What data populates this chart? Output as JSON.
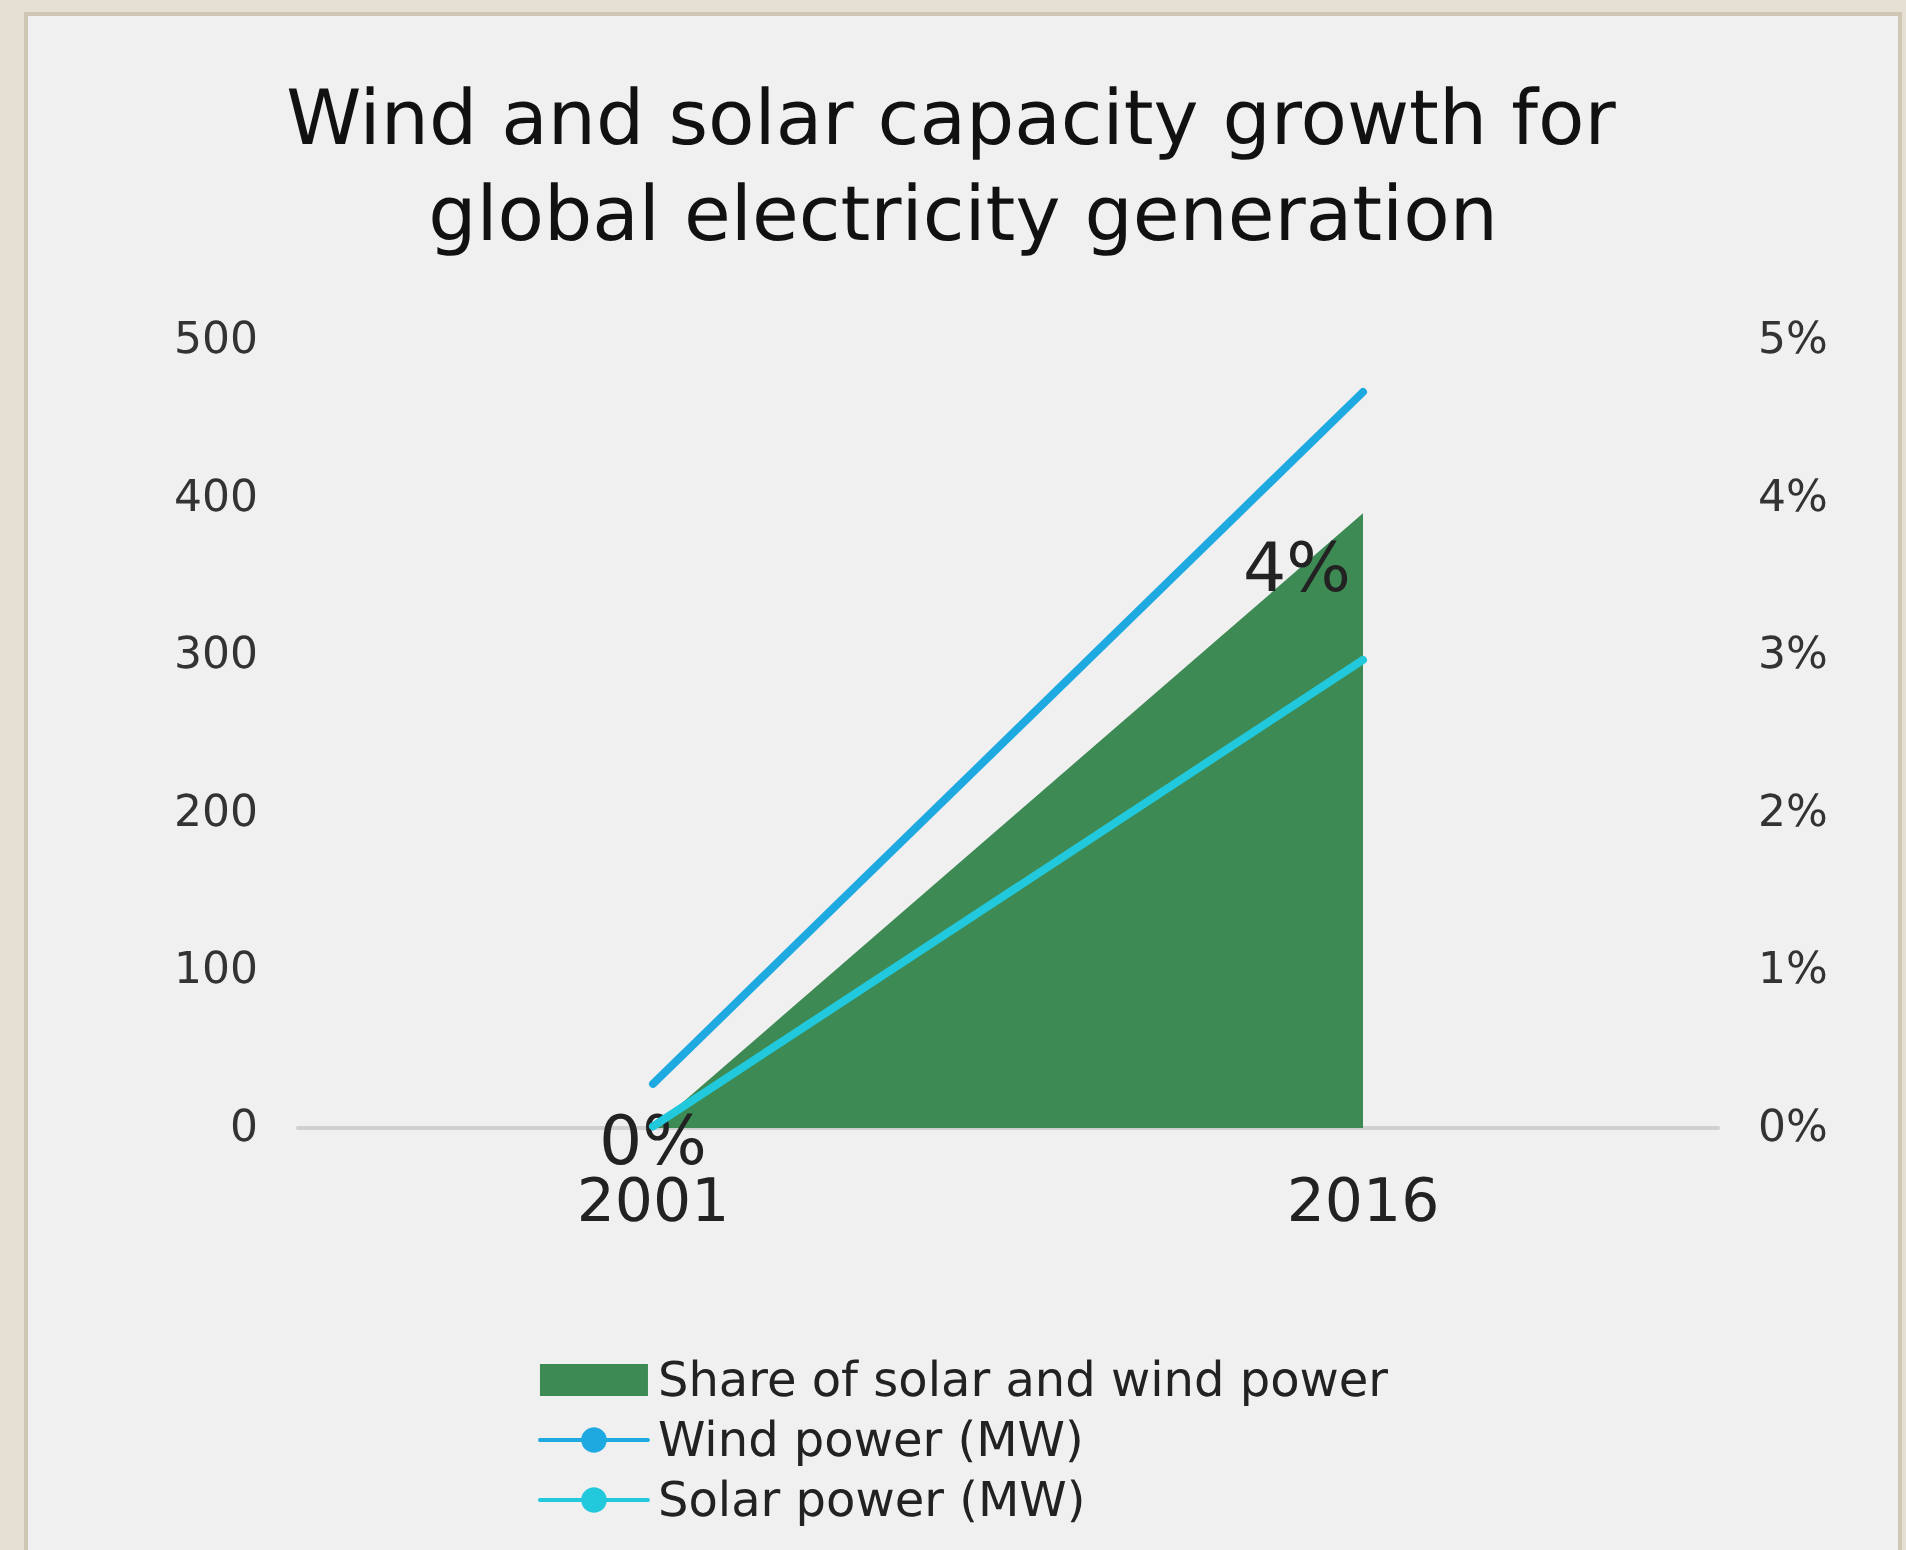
{
  "chart_data": {
    "type": "line",
    "title": "Wind and solar capacity growth for global electricity generation",
    "categories": [
      "2001",
      "2016"
    ],
    "series": [
      {
        "name": "Share of solar and wind power",
        "type": "area",
        "axis": "y2",
        "color": "#3e8a55",
        "values": [
          0,
          3.9
        ],
        "value_labels": [
          "0%",
          "4%"
        ]
      },
      {
        "name": "Wind power (MW)",
        "color": "#1fa9e1",
        "values": [
          28,
          467
        ]
      },
      {
        "name": "Solar power (MW)",
        "color": "#22c8dc",
        "values": [
          1,
          297
        ]
      }
    ],
    "ylim": [
      0,
      500
    ],
    "yticks": [
      0,
      100,
      200,
      300,
      400,
      500
    ],
    "y2lim": [
      0,
      5
    ],
    "y2ticks": [
      {
        "value": 0,
        "label": "0%"
      },
      {
        "value": 1,
        "label": "1%"
      },
      {
        "value": 2,
        "label": "2%"
      },
      {
        "value": 3,
        "label": "3%"
      },
      {
        "value": 4,
        "label": "4%"
      },
      {
        "value": 5,
        "label": "5%"
      }
    ],
    "grid": false,
    "legend": "bottom",
    "marker": "none",
    "line_style": "solid"
  }
}
